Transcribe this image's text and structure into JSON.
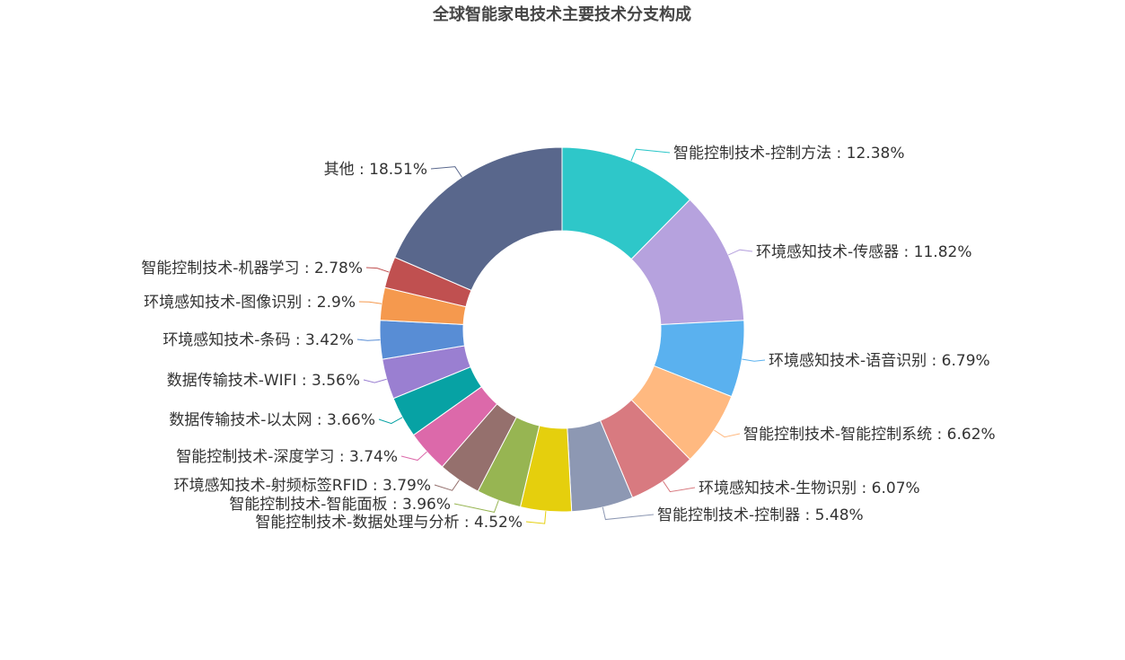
{
  "chart_data": {
    "type": "pie",
    "variant": "donut",
    "title": "全球智能家电技术主要技术分支构成",
    "label_separator": " : ",
    "slices": [
      {
        "name": "智能控制技术-控制方法",
        "value": 12.38,
        "display": "12.38%",
        "color": "#2ec7c9"
      },
      {
        "name": "环境感知技术-传感器",
        "value": 11.82,
        "display": "11.82%",
        "color": "#b6a2de"
      },
      {
        "name": "环境感知技术-语音识别",
        "value": 6.79,
        "display": "6.79%",
        "color": "#5ab1ef"
      },
      {
        "name": "智能控制技术-智能控制系统",
        "value": 6.62,
        "display": "6.62%",
        "color": "#ffb980"
      },
      {
        "name": "环境感知技术-生物识别",
        "value": 6.07,
        "display": "6.07%",
        "color": "#d87a80"
      },
      {
        "name": "智能控制技术-控制器",
        "value": 5.48,
        "display": "5.48%",
        "color": "#8d98b3"
      },
      {
        "name": "智能控制技术-数据处理与分析",
        "value": 4.52,
        "display": "4.52%",
        "color": "#e5cf0d"
      },
      {
        "name": "智能控制技术-智能面板",
        "value": 3.96,
        "display": "3.96%",
        "color": "#97b552"
      },
      {
        "name": "环境感知技术-射频标签RFID",
        "value": 3.79,
        "display": "3.79%",
        "color": "#95706d"
      },
      {
        "name": "智能控制技术-深度学习",
        "value": 3.74,
        "display": "3.74%",
        "color": "#dc69aa"
      },
      {
        "name": "数据传输技术-以太网",
        "value": 3.66,
        "display": "3.66%",
        "color": "#07a2a4"
      },
      {
        "name": "数据传输技术-WIFI",
        "value": 3.56,
        "display": "3.56%",
        "color": "#9a7fd1"
      },
      {
        "name": "环境感知技术-条码",
        "value": 3.42,
        "display": "3.42%",
        "color": "#588dd5"
      },
      {
        "name": "环境感知技术-图像识别",
        "value": 2.9,
        "display": "2.9%",
        "color": "#f5994e"
      },
      {
        "name": "智能控制技术-机器学习",
        "value": 2.78,
        "display": "2.78%",
        "color": "#c05050"
      },
      {
        "name": "其他",
        "value": 18.51,
        "display": "18.51%",
        "color": "#59678c"
      }
    ]
  }
}
